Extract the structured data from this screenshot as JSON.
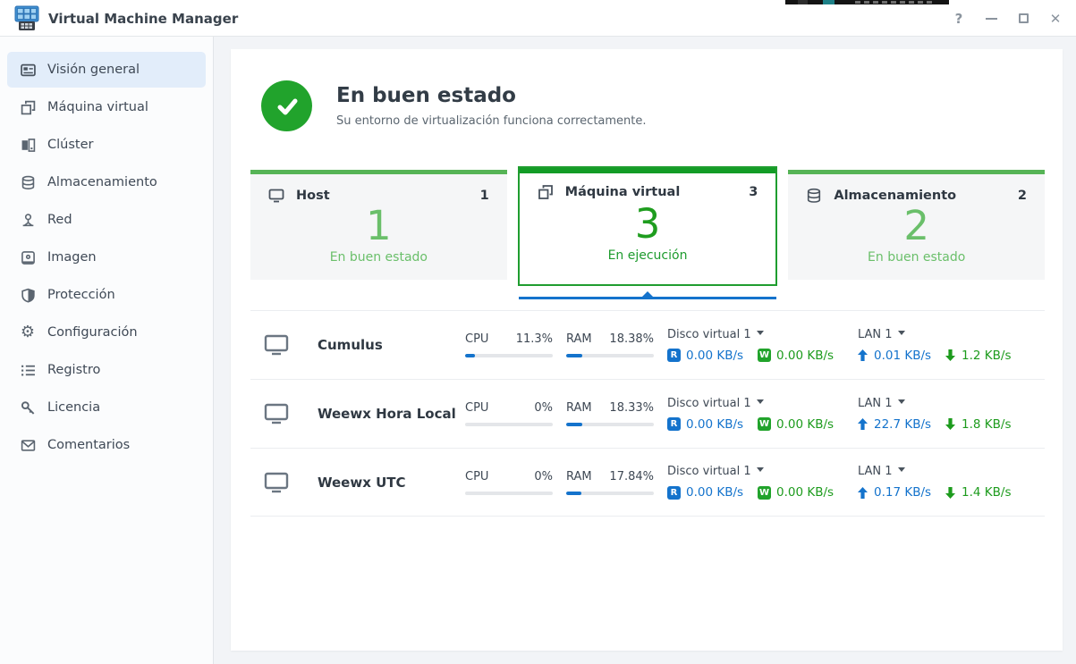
{
  "window": {
    "title": "Virtual Machine Manager",
    "controls": {
      "help": "?",
      "close": "✕"
    }
  },
  "sidebar": {
    "items": [
      {
        "label": "Visión general",
        "active": true
      },
      {
        "label": "Máquina virtual",
        "active": false
      },
      {
        "label": "Clúster",
        "active": false
      },
      {
        "label": "Almacenamiento",
        "active": false
      },
      {
        "label": "Red",
        "active": false
      },
      {
        "label": "Imagen",
        "active": false
      },
      {
        "label": "Protección",
        "active": false
      },
      {
        "label": "Configuración",
        "active": false
      },
      {
        "label": "Registro",
        "active": false
      },
      {
        "label": "Licencia",
        "active": false
      },
      {
        "label": "Comentarios",
        "active": false
      }
    ]
  },
  "status": {
    "title": "En buen estado",
    "subtitle": "Su entorno de virtualización funciona correctamente."
  },
  "cards": [
    {
      "label": "Host",
      "count": "1",
      "big_number": "1",
      "status": "En buen estado",
      "selected": false
    },
    {
      "label": "Máquina virtual",
      "count": "3",
      "big_number": "3",
      "status": "En ejecución",
      "selected": true
    },
    {
      "label": "Almacenamiento",
      "count": "2",
      "big_number": "2",
      "status": "En buen estado",
      "selected": false
    }
  ],
  "vm_list": [
    {
      "name": "Cumulus",
      "cpu_label": "CPU",
      "cpu": "11.3%",
      "cpu_pct": 11.3,
      "ram_label": "RAM",
      "ram": "18.38%",
      "ram_pct": 18.38,
      "disk_label": "Disco virtual 1",
      "read_badge": "R",
      "read": "0.00 KB/s",
      "write_badge": "W",
      "write": "0.00 KB/s",
      "lan_label": "LAN 1",
      "upload": "0.01 KB/s",
      "download": "1.2 KB/s"
    },
    {
      "name": "Weewx Hora Local",
      "cpu_label": "CPU",
      "cpu": "0%",
      "cpu_pct": 0,
      "ram_label": "RAM",
      "ram": "18.33%",
      "ram_pct": 18.33,
      "disk_label": "Disco virtual 1",
      "read_badge": "R",
      "read": "0.00 KB/s",
      "write_badge": "W",
      "write": "0.00 KB/s",
      "lan_label": "LAN 1",
      "upload": "22.7 KB/s",
      "download": "1.8 KB/s"
    },
    {
      "name": "Weewx UTC",
      "cpu_label": "CPU",
      "cpu": "0%",
      "cpu_pct": 0,
      "ram_label": "RAM",
      "ram": "17.84%",
      "ram_pct": 17.84,
      "disk_label": "Disco virtual 1",
      "read_badge": "R",
      "read": "0.00 KB/s",
      "write_badge": "W",
      "write": "0.00 KB/s",
      "lan_label": "LAN 1",
      "upload": "0.17 KB/s",
      "download": "1.4 KB/s"
    }
  ],
  "colors": {
    "accent_blue": "#1473cc",
    "status_green": "#21a32c",
    "card_green_light": "#6abf6a",
    "card_green_dark": "#1f9d1f"
  }
}
